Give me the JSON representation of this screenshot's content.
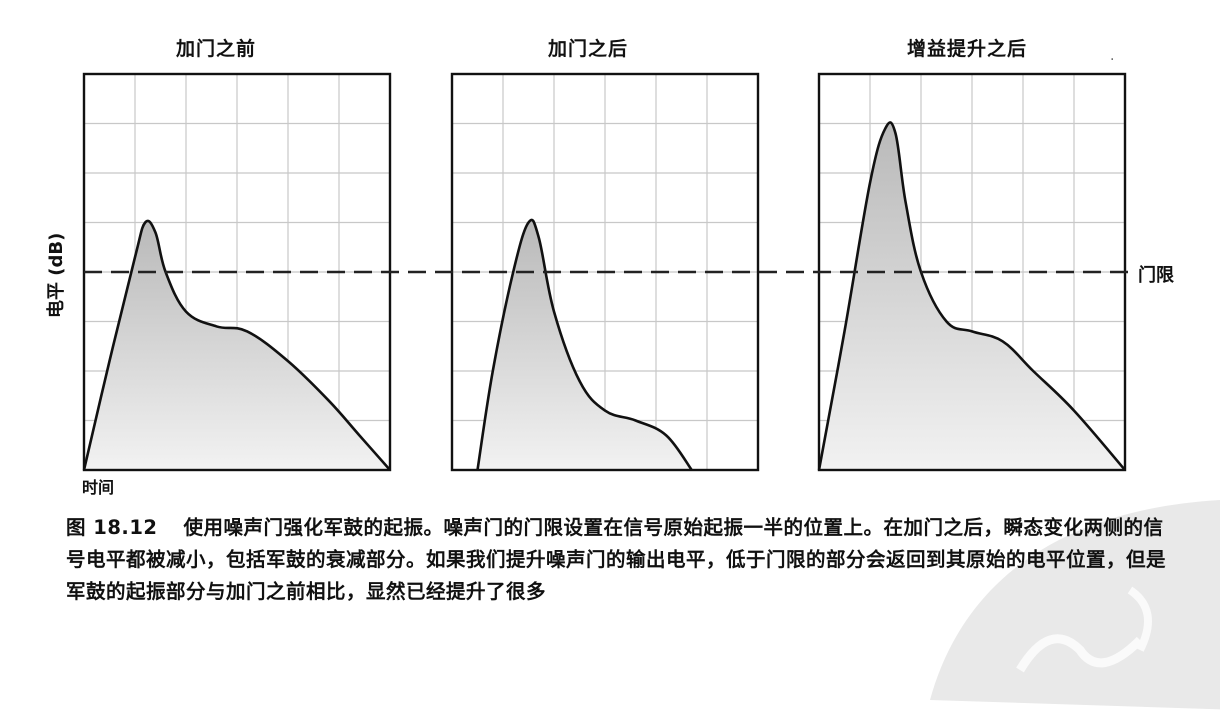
{
  "panels": [
    {
      "title": "加门之前"
    },
    {
      "title": "加门之后"
    },
    {
      "title": "增益提升之后"
    }
  ],
  "ylabel": "电平 (dB)",
  "xlabel": "时间",
  "threshold_label": "门限",
  "caption": {
    "figure_no": "图 18.12",
    "text": "使用噪声门强化军鼓的起振。噪声门的门限设置在信号原始起振一半的位置上。在加门之后，瞬态变化两侧的信号电平都被减小，包括军鼓的衰减部分。如果我们提升噪声门的输出电平，低于门限的部分会返回到其原始的电平位置，但是军鼓的起振部分与加门之前相比，显然已经提升了很多"
  },
  "chart_data": [
    {
      "type": "area",
      "title": "加门之前",
      "xlabel": "时间",
      "ylabel": "电平 (dB)",
      "xlim": [
        0,
        6
      ],
      "ylim": [
        0,
        8
      ],
      "grid": true,
      "threshold": 4,
      "series": [
        {
          "x": [
            0,
            0.5,
            1.0,
            1.2,
            1.4,
            1.6,
            2.0,
            2.6,
            3.2,
            4.0,
            4.8,
            5.4,
            6.0
          ],
          "values": [
            0,
            2.2,
            4.3,
            5.0,
            4.8,
            4.0,
            3.2,
            2.9,
            2.8,
            2.2,
            1.4,
            0.7,
            0
          ]
        }
      ]
    },
    {
      "type": "area",
      "title": "加门之后",
      "xlabel": "",
      "ylabel": "",
      "xlim": [
        0,
        6
      ],
      "ylim": [
        0,
        8
      ],
      "grid": true,
      "threshold": 4,
      "series": [
        {
          "x": [
            0.5,
            0.8,
            1.2,
            1.5,
            1.7,
            2.0,
            2.5,
            3.0,
            3.6,
            4.2,
            4.7
          ],
          "values": [
            0,
            2.0,
            4.0,
            5.0,
            4.7,
            3.2,
            1.8,
            1.2,
            1.0,
            0.7,
            0
          ]
        }
      ]
    },
    {
      "type": "area",
      "title": "增益提升之后",
      "xlabel": "",
      "ylabel": "",
      "xlim": [
        0,
        6
      ],
      "ylim": [
        0,
        8
      ],
      "grid": true,
      "threshold": 4,
      "series": [
        {
          "x": [
            0,
            0.5,
            1.0,
            1.3,
            1.5,
            1.7,
            2.0,
            2.5,
            3.0,
            3.6,
            4.2,
            5.0,
            6.0
          ],
          "values": [
            0,
            2.8,
            5.8,
            6.9,
            6.8,
            5.4,
            4.0,
            3.0,
            2.8,
            2.6,
            2.0,
            1.2,
            0
          ]
        }
      ]
    }
  ]
}
